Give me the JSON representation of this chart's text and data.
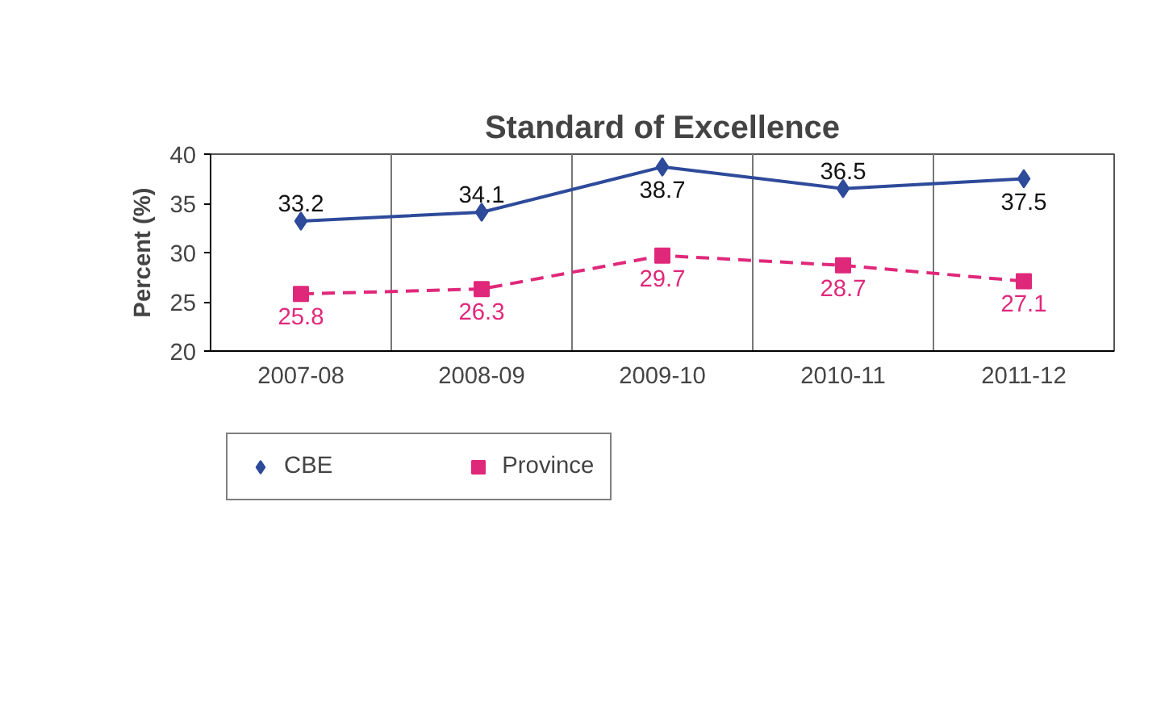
{
  "chart_data": {
    "type": "line",
    "title": "Standard of Excellence",
    "ylabel": "Percent (%)",
    "categories": [
      "2007-08",
      "2008-09",
      "2009-10",
      "2010-11",
      "2011-12"
    ],
    "series": [
      {
        "name": "CBE",
        "color": "#2e4a9a",
        "values": [
          33.2,
          34.1,
          38.7,
          36.5,
          37.5
        ],
        "marker": "diamond",
        "line_style": "solid"
      },
      {
        "name": "Province",
        "color": "#e0287a",
        "values": [
          25.8,
          26.3,
          29.7,
          28.7,
          27.1
        ],
        "marker": "square",
        "line_style": "dashed"
      }
    ],
    "ylim": [
      20,
      40
    ],
    "yticks": [
      20,
      25,
      30,
      35,
      40
    ],
    "grid": "x",
    "legend": "bottom",
    "data_labels": true
  }
}
